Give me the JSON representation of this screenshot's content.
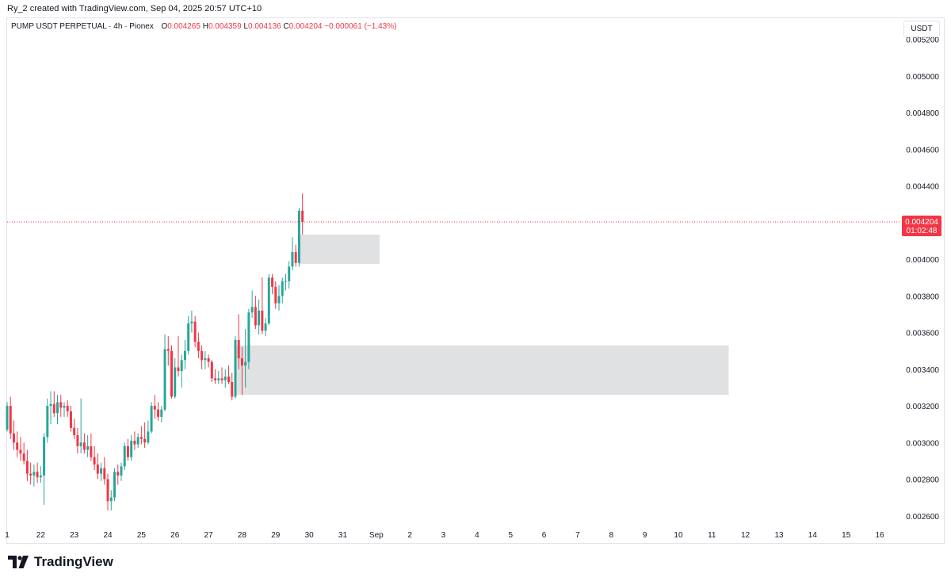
{
  "header": {
    "created_by": "Ry_2 created with TradingView.com, Sep 04, 2025 20:57 UTC+10",
    "symbol": "PUMP USDT PERPETUAL · 4h · Pionex",
    "open_label": "O",
    "open": "0.004265",
    "high_label": "H",
    "high": "0.004359",
    "low_label": "L",
    "low": "0.004136",
    "close_label": "C",
    "close": "0.004204",
    "change": "−0.000061 (−1.43%)"
  },
  "currency_button": "USDT",
  "price_tag": {
    "price": "0.004204",
    "countdown": "01:02:48"
  },
  "brand": "TradingView",
  "colors": {
    "up": "#26a69a",
    "down": "#f23645",
    "zone": "#e0e1e3",
    "grid_border": "#e0e3eb",
    "text": "#131722"
  },
  "chart_data": {
    "type": "candlestick",
    "interval": "4h",
    "y_axis": {
      "ylim": [
        0.00256,
        0.00532
      ],
      "ticks": [
        {
          "value": 0.0026,
          "label": "0.002600"
        },
        {
          "value": 0.0028,
          "label": "0.002800"
        },
        {
          "value": 0.003,
          "label": "0.003000"
        },
        {
          "value": 0.0032,
          "label": "0.003200"
        },
        {
          "value": 0.0034,
          "label": "0.003400"
        },
        {
          "value": 0.0036,
          "label": "0.003600"
        },
        {
          "value": 0.0038,
          "label": "0.003800"
        },
        {
          "value": 0.004,
          "label": "0.004000"
        },
        {
          "value": 0.0042,
          "label": "0.004200"
        },
        {
          "value": 0.0044,
          "label": "0.004400"
        },
        {
          "value": 0.0046,
          "label": "0.004600"
        },
        {
          "value": 0.0048,
          "label": "0.004800"
        },
        {
          "value": 0.005,
          "label": "0.005000"
        },
        {
          "value": 0.0052,
          "label": "0.005200"
        }
      ]
    },
    "x_axis": {
      "bar_range": [
        0,
        264
      ],
      "ticks": [
        {
          "bar": 0,
          "label": "1"
        },
        {
          "bar": 10,
          "label": "22"
        },
        {
          "bar": 20,
          "label": "23"
        },
        {
          "bar": 30,
          "label": "24"
        },
        {
          "bar": 40,
          "label": "25"
        },
        {
          "bar": 50,
          "label": "26"
        },
        {
          "bar": 60,
          "label": "27"
        },
        {
          "bar": 70,
          "label": "28"
        },
        {
          "bar": 80,
          "label": "29"
        },
        {
          "bar": 90,
          "label": "30"
        },
        {
          "bar": 100,
          "label": "31"
        },
        {
          "bar": 110,
          "label": "Sep"
        },
        {
          "bar": 120,
          "label": "2"
        },
        {
          "bar": 130,
          "label": "3"
        },
        {
          "bar": 140,
          "label": "4"
        },
        {
          "bar": 150,
          "label": "5"
        },
        {
          "bar": 160,
          "label": "6"
        },
        {
          "bar": 170,
          "label": "7"
        },
        {
          "bar": 180,
          "label": "8"
        },
        {
          "bar": 190,
          "label": "9"
        },
        {
          "bar": 200,
          "label": "10"
        },
        {
          "bar": 210,
          "label": "11"
        },
        {
          "bar": 220,
          "label": "12"
        },
        {
          "bar": 230,
          "label": "13"
        },
        {
          "bar": 240,
          "label": "14"
        },
        {
          "bar": 250,
          "label": "15"
        },
        {
          "bar": 260,
          "label": "16"
        }
      ]
    },
    "candles": [
      [
        0.00307,
        0.00322,
        0.00306,
        0.0032
      ],
      [
        0.0032,
        0.00325,
        0.00302,
        0.00305
      ],
      [
        0.00305,
        0.00312,
        0.00296,
        0.003
      ],
      [
        0.003,
        0.00306,
        0.00292,
        0.00296
      ],
      [
        0.00296,
        0.00303,
        0.0029,
        0.00294
      ],
      [
        0.00294,
        0.003,
        0.00288,
        0.0029
      ],
      [
        0.0029,
        0.00296,
        0.00279,
        0.00283
      ],
      [
        0.00283,
        0.00289,
        0.00277,
        0.00282
      ],
      [
        0.00282,
        0.00288,
        0.00276,
        0.00284
      ],
      [
        0.00284,
        0.00289,
        0.00278,
        0.00281
      ],
      [
        0.00281,
        0.00287,
        0.00278,
        0.00282
      ],
      [
        0.00282,
        0.00305,
        0.00266,
        0.00303
      ],
      [
        0.00303,
        0.00324,
        0.003,
        0.0032
      ],
      [
        0.0032,
        0.00328,
        0.0031,
        0.00321
      ],
      [
        0.00321,
        0.00328,
        0.00314,
        0.00316
      ],
      [
        0.00316,
        0.00326,
        0.0031,
        0.00322
      ],
      [
        0.00322,
        0.00326,
        0.00314,
        0.00319
      ],
      [
        0.00319,
        0.00322,
        0.00314,
        0.0032
      ],
      [
        0.0032,
        0.00323,
        0.00314,
        0.00317
      ],
      [
        0.00317,
        0.0032,
        0.00306,
        0.00308
      ],
      [
        0.00308,
        0.00313,
        0.00302,
        0.00304
      ],
      [
        0.00304,
        0.00308,
        0.00294,
        0.00298
      ],
      [
        0.00298,
        0.00324,
        0.00294,
        0.003
      ],
      [
        0.003,
        0.00305,
        0.00294,
        0.00296
      ],
      [
        0.00296,
        0.00304,
        0.00292,
        0.00298
      ],
      [
        0.00298,
        0.00305,
        0.0029,
        0.00292
      ],
      [
        0.00292,
        0.00298,
        0.00285,
        0.00288
      ],
      [
        0.00288,
        0.00294,
        0.0028,
        0.00283
      ],
      [
        0.00283,
        0.00289,
        0.00279,
        0.00286
      ],
      [
        0.00286,
        0.00292,
        0.00277,
        0.0028
      ],
      [
        0.0028,
        0.00283,
        0.00263,
        0.00268
      ],
      [
        0.00268,
        0.00274,
        0.00263,
        0.0027
      ],
      [
        0.0027,
        0.00286,
        0.00268,
        0.00284
      ],
      [
        0.00284,
        0.00288,
        0.00277,
        0.00282
      ],
      [
        0.00282,
        0.00289,
        0.00279,
        0.00287
      ],
      [
        0.00287,
        0.003,
        0.00285,
        0.00298
      ],
      [
        0.00298,
        0.00302,
        0.0029,
        0.00292
      ],
      [
        0.00292,
        0.00304,
        0.0029,
        0.00301
      ],
      [
        0.00301,
        0.00306,
        0.00296,
        0.00299
      ],
      [
        0.00299,
        0.00305,
        0.00297,
        0.00303
      ],
      [
        0.00303,
        0.00309,
        0.00299,
        0.00302
      ],
      [
        0.00302,
        0.00311,
        0.00297,
        0.003
      ],
      [
        0.003,
        0.00312,
        0.00299,
        0.00306
      ],
      [
        0.00306,
        0.00322,
        0.00305,
        0.0032
      ],
      [
        0.0032,
        0.00326,
        0.00313,
        0.00318
      ],
      [
        0.00318,
        0.00322,
        0.00312,
        0.00314
      ],
      [
        0.00314,
        0.0032,
        0.00311,
        0.00318
      ],
      [
        0.00318,
        0.00359,
        0.00317,
        0.00351
      ],
      [
        0.00351,
        0.00358,
        0.00342,
        0.0035
      ],
      [
        0.0035,
        0.00353,
        0.00324,
        0.00325
      ],
      [
        0.00325,
        0.00346,
        0.00324,
        0.00341
      ],
      [
        0.00341,
        0.00358,
        0.00336,
        0.00339
      ],
      [
        0.00339,
        0.00348,
        0.0033,
        0.00345
      ],
      [
        0.00345,
        0.00356,
        0.0034,
        0.0035
      ],
      [
        0.0035,
        0.00369,
        0.00348,
        0.00365
      ],
      [
        0.00365,
        0.00372,
        0.0036,
        0.00366
      ],
      [
        0.00366,
        0.00369,
        0.00352,
        0.00355
      ],
      [
        0.00355,
        0.0036,
        0.00346,
        0.0035
      ],
      [
        0.0035,
        0.00353,
        0.0034,
        0.00345
      ],
      [
        0.00345,
        0.0035,
        0.0034,
        0.00346
      ],
      [
        0.00346,
        0.00348,
        0.00341,
        0.00344
      ],
      [
        0.00344,
        0.00345,
        0.00333,
        0.00335
      ],
      [
        0.00335,
        0.0034,
        0.00332,
        0.00334
      ],
      [
        0.00334,
        0.00339,
        0.00332,
        0.00335
      ],
      [
        0.00335,
        0.00341,
        0.00332,
        0.00334
      ],
      [
        0.00334,
        0.0034,
        0.0033,
        0.00336
      ],
      [
        0.00336,
        0.00342,
        0.00332,
        0.00333
      ],
      [
        0.00333,
        0.00338,
        0.00323,
        0.00325
      ],
      [
        0.00325,
        0.00358,
        0.00324,
        0.00356
      ],
      [
        0.00356,
        0.0037,
        0.0034,
        0.00346
      ],
      [
        0.00346,
        0.00352,
        0.00326,
        0.00342
      ],
      [
        0.00342,
        0.00362,
        0.0033,
        0.00344
      ],
      [
        0.00344,
        0.00373,
        0.0034,
        0.00371
      ],
      [
        0.00371,
        0.00383,
        0.00368,
        0.00374
      ],
      [
        0.00374,
        0.0038,
        0.00362,
        0.00364
      ],
      [
        0.00364,
        0.00378,
        0.00359,
        0.00372
      ],
      [
        0.00372,
        0.0039,
        0.00359,
        0.00361
      ],
      [
        0.00361,
        0.00368,
        0.00358,
        0.00365
      ],
      [
        0.00365,
        0.00392,
        0.00364,
        0.0039
      ],
      [
        0.0039,
        0.00392,
        0.00381,
        0.00385
      ],
      [
        0.00385,
        0.00388,
        0.00373,
        0.00376
      ],
      [
        0.00376,
        0.00386,
        0.00372,
        0.0038
      ],
      [
        0.0038,
        0.0039,
        0.00376,
        0.00388
      ],
      [
        0.00388,
        0.00392,
        0.00383,
        0.00388
      ],
      [
        0.00388,
        0.00399,
        0.00384,
        0.00396
      ],
      [
        0.00396,
        0.00412,
        0.00394,
        0.00404
      ],
      [
        0.00404,
        0.00408,
        0.00396,
        0.00398
      ],
      [
        0.00398,
        0.00428,
        0.00396,
        0.004265
      ],
      [
        0.004265,
        0.004359,
        0.004136,
        0.004204
      ]
    ],
    "zones": [
      {
        "bar_start": 87,
        "bar_end": 111,
        "price_low": 0.003975,
        "price_high": 0.004135
      },
      {
        "bar_start": 68,
        "bar_end": 215,
        "price_low": 0.00326,
        "price_high": 0.00353
      }
    ],
    "last_price": 0.004204
  }
}
